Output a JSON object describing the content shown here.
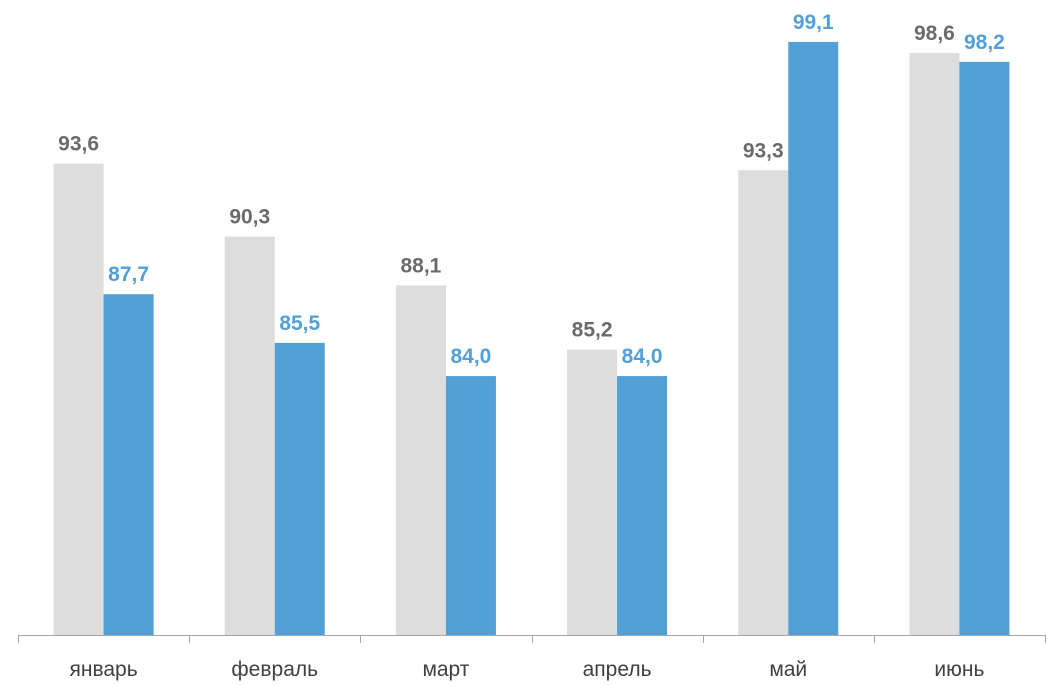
{
  "chart_data": {
    "type": "bar",
    "categories": [
      "январь",
      "февраль",
      "март",
      "апрель",
      "май",
      "июнь"
    ],
    "series": [
      {
        "values": [
          93.6,
          90.3,
          88.1,
          85.2,
          93.3,
          98.6
        ],
        "labels": [
          "93,6",
          "90,3",
          "88,1",
          "85,2",
          "93,3",
          "98,6"
        ],
        "color": "#DDDDDD",
        "label_color": "#6B6B6B"
      },
      {
        "values": [
          87.7,
          85.5,
          84.0,
          84.0,
          99.1,
          98.2
        ],
        "labels": [
          "87,7",
          "85,5",
          "84,0",
          "84,0",
          "99,1",
          "98,2"
        ],
        "color": "#539FD8",
        "label_color": "#539FD8"
      }
    ],
    "ylim": [
      72.3,
      100
    ],
    "grid": false,
    "legend": "none",
    "axis_color": "#A6A6A6"
  }
}
